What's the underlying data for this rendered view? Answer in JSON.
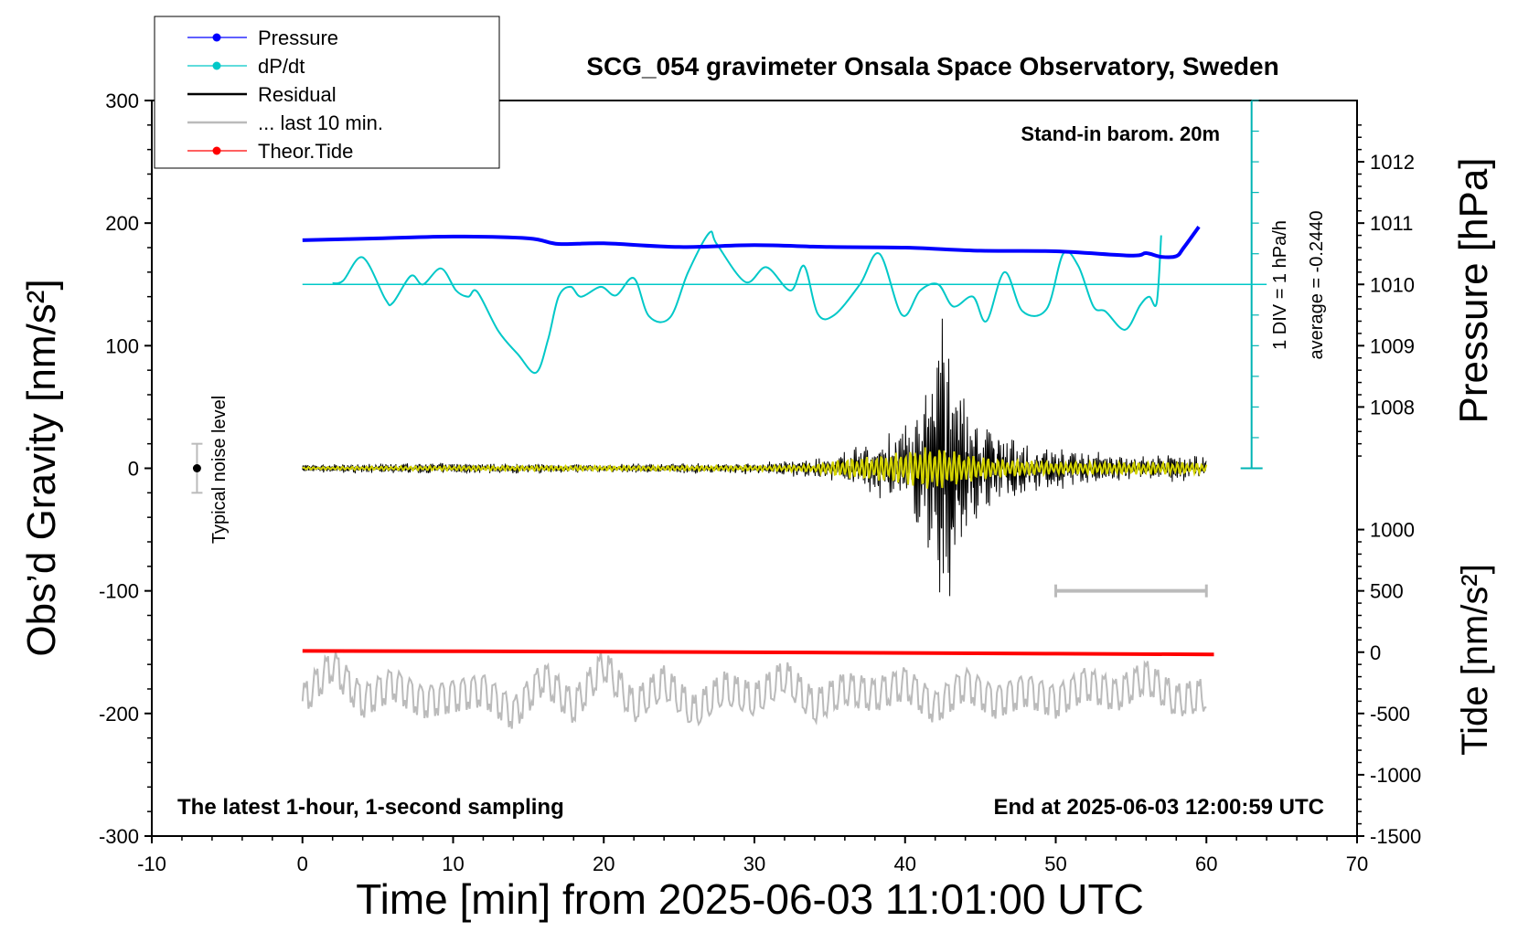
{
  "chart_data": {
    "type": "line",
    "title": "SCG_054 gravimeter Onsala Space Observatory, Sweden",
    "xlabel": "Time [min] from 2025-06-03 11:01:00 UTC",
    "ylabel_left": "Obs’d Gravity [nm/s²]",
    "ylabel_right_top": "Pressure [hPa]",
    "ylabel_right_bottom": "Tide [nm/s²]",
    "xlim": [
      -10,
      70
    ],
    "ylim_left": [
      -300,
      300
    ],
    "x_ticks": [
      "-10",
      "0",
      "10",
      "20",
      "30",
      "40",
      "50",
      "60",
      "70"
    ],
    "y_ticks_left": [
      "300",
      "200",
      "100",
      "0",
      "-100",
      "-200",
      "-300"
    ],
    "pressure_ticks": [
      "1012",
      "1011",
      "1010",
      "1009",
      "1008"
    ],
    "tide_ticks": [
      "1000",
      "500",
      "0",
      "-500",
      "-1000",
      "-1500"
    ],
    "annotations": {
      "barometer": "Stand-in barom. 20m",
      "div_scale": "1 DIV = 1 hPa/h",
      "average": "average = -0.2440",
      "noise": "Typical noise level",
      "sampling": "The latest 1-hour, 1-second sampling",
      "end_time": "End at 2025-06-03 12:00:59 UTC"
    },
    "legend": [
      {
        "label": "Pressure",
        "color": "#0000ff",
        "marker": true
      },
      {
        "label": "dP/dt",
        "color": "#00c8c8",
        "marker": true
      },
      {
        "label": "Residual",
        "color": "#000000",
        "marker": false
      },
      {
        "label": "... last 10 min.",
        "color": "#bbbbbb",
        "marker": false
      },
      {
        "label": "Theor.Tide",
        "color": "#ff0000",
        "marker": true
      }
    ],
    "series": {
      "pressure_hPa": {
        "x": [
          0,
          5,
          10,
          15,
          17,
          20,
          25,
          30,
          35,
          40,
          45,
          50,
          55,
          56,
          57,
          58,
          58.5,
          59.5
        ],
        "values": [
          1010.72,
          1010.75,
          1010.78,
          1010.75,
          1010.66,
          1010.67,
          1010.61,
          1010.64,
          1010.61,
          1010.6,
          1010.55,
          1010.54,
          1010.47,
          1010.51,
          1010.45,
          1010.46,
          1010.6,
          1010.94
        ]
      },
      "dPdt_gravity_units": {
        "x": [
          2,
          2.7,
          4,
          5.5,
          6,
          7.2,
          8,
          9.2,
          10.2,
          11,
          11.6,
          13,
          14.3,
          15.5,
          16.3,
          17,
          17.8,
          18.5,
          19.8,
          20.8,
          22,
          23,
          24.4,
          25.6,
          27,
          27.5,
          29.4,
          30.8,
          32.4,
          33.3,
          34.2,
          35.3,
          37,
          38.3,
          39.8,
          41,
          42.2,
          43.2,
          44.5,
          45.4,
          46.6,
          47.8,
          49.4,
          50.5,
          51.5,
          52.5,
          53.3,
          54.6,
          55.6,
          56.2,
          56.7,
          57
        ],
        "values": [
          151,
          153,
          172,
          138,
          135,
          157,
          150,
          163,
          145,
          140,
          144,
          112,
          93,
          78,
          105,
          140,
          148,
          140,
          148,
          141,
          155,
          124,
          123,
          160,
          192,
          183,
          152,
          164,
          145,
          165,
          126,
          125,
          150,
          175,
          125,
          145,
          150,
          132,
          140,
          120,
          160,
          128,
          130,
          175,
          165,
          132,
          128,
          113,
          133,
          140,
          135,
          190
        ]
      },
      "residual_envelope": {
        "x": [
          0,
          10,
          20,
          30,
          35,
          38,
          40,
          41.5,
          42.5,
          43.5,
          45,
          48,
          52,
          56,
          60
        ],
        "values": [
          4,
          5,
          4,
          5,
          10,
          25,
          40,
          70,
          150,
          80,
          40,
          25,
          15,
          12,
          12
        ]
      },
      "last10min_filtered": {
        "x": [
          0,
          10,
          20,
          30,
          34,
          36,
          38,
          40,
          41.5,
          42.5,
          44,
          46,
          50,
          54,
          58,
          60
        ],
        "values": [
          1,
          2,
          2,
          2,
          3,
          8,
          10,
          14,
          18,
          17,
          12,
          8,
          5,
          5,
          5,
          4
        ]
      },
      "theor_tide_nm_s2": {
        "x": [
          0,
          10,
          20,
          30,
          40,
          50,
          60.5
        ],
        "values": [
          10,
          8,
          4,
          -1,
          -6,
          -12,
          -18
        ]
      },
      "residual_last_10min_display": {
        "x": [
          0,
          2,
          4,
          6,
          8,
          10,
          12,
          14,
          16,
          18,
          20,
          22,
          24,
          26,
          28,
          30,
          32,
          34,
          36,
          38,
          40,
          42,
          44,
          46,
          48,
          50,
          52,
          54,
          56,
          58,
          60
        ],
        "values": [
          -190,
          -160,
          -190,
          -175,
          -190,
          -185,
          -180,
          -200,
          -170,
          -195,
          -160,
          -195,
          -175,
          -200,
          -180,
          -190,
          -170,
          -195,
          -180,
          -185,
          -175,
          -195,
          -175,
          -190,
          -180,
          -190,
          -175,
          -185,
          -170,
          -190,
          -185
        ]
      }
    },
    "noise_bar": {
      "x": -7,
      "center": 0,
      "half_range": 20
    },
    "scale_bar": {
      "x_start": 50,
      "x_end": 60,
      "y": -100
    }
  }
}
